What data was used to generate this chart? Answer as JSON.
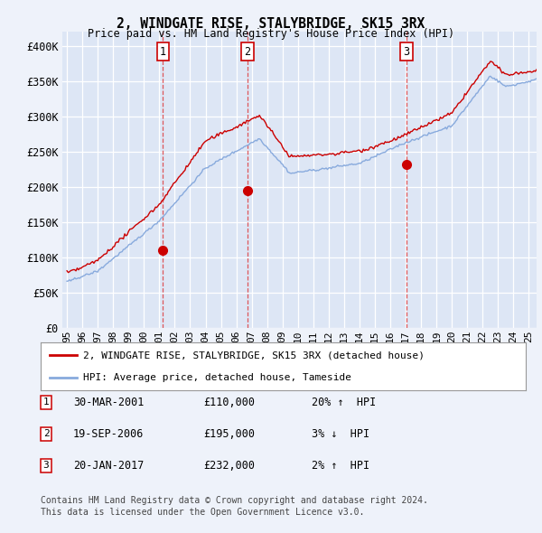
{
  "title": "2, WINDGATE RISE, STALYBRIDGE, SK15 3RX",
  "subtitle": "Price paid vs. HM Land Registry's House Price Index (HPI)",
  "ylim": [
    0,
    420000
  ],
  "yticks": [
    0,
    50000,
    100000,
    150000,
    200000,
    250000,
    300000,
    350000,
    400000
  ],
  "ytick_labels": [
    "£0",
    "£50K",
    "£100K",
    "£150K",
    "£200K",
    "£250K",
    "£300K",
    "£350K",
    "£400K"
  ],
  "xlim_start": 1994.7,
  "xlim_end": 2025.5,
  "background_color": "#eef2fa",
  "plot_bg_color": "#dde6f5",
  "grid_color": "#ffffff",
  "sale_line_color": "#cc0000",
  "hpi_line_color": "#88aadd",
  "sale_label": "2, WINDGATE RISE, STALYBRIDGE, SK15 3RX (detached house)",
  "hpi_label": "HPI: Average price, detached house, Tameside",
  "transactions": [
    {
      "num": 1,
      "date": "30-MAR-2001",
      "price": 110000,
      "pct": "20%",
      "dir": "↑",
      "year": 2001.24
    },
    {
      "num": 2,
      "date": "19-SEP-2006",
      "price": 195000,
      "pct": "3%",
      "dir": "↓",
      "year": 2006.71
    },
    {
      "num": 3,
      "date": "20-JAN-2017",
      "price": 232000,
      "pct": "2%",
      "dir": "↑",
      "year": 2017.05
    }
  ],
  "footnote1": "Contains HM Land Registry data © Crown copyright and database right 2024.",
  "footnote2": "This data is licensed under the Open Government Licence v3.0.",
  "xtick_labels": [
    "95",
    "96",
    "97",
    "98",
    "99",
    "00",
    "01",
    "02",
    "03",
    "04",
    "05",
    "06",
    "07",
    "08",
    "09",
    "10",
    "11",
    "12",
    "13",
    "14",
    "15",
    "16",
    "17",
    "18",
    "19",
    "20",
    "21",
    "22",
    "23",
    "24",
    "25"
  ],
  "xtick_years": [
    1995,
    1996,
    1997,
    1998,
    1999,
    2000,
    2001,
    2002,
    2003,
    2004,
    2005,
    2006,
    2007,
    2008,
    2009,
    2010,
    2011,
    2012,
    2013,
    2014,
    2015,
    2016,
    2017,
    2018,
    2019,
    2020,
    2021,
    2022,
    2023,
    2024,
    2025
  ]
}
